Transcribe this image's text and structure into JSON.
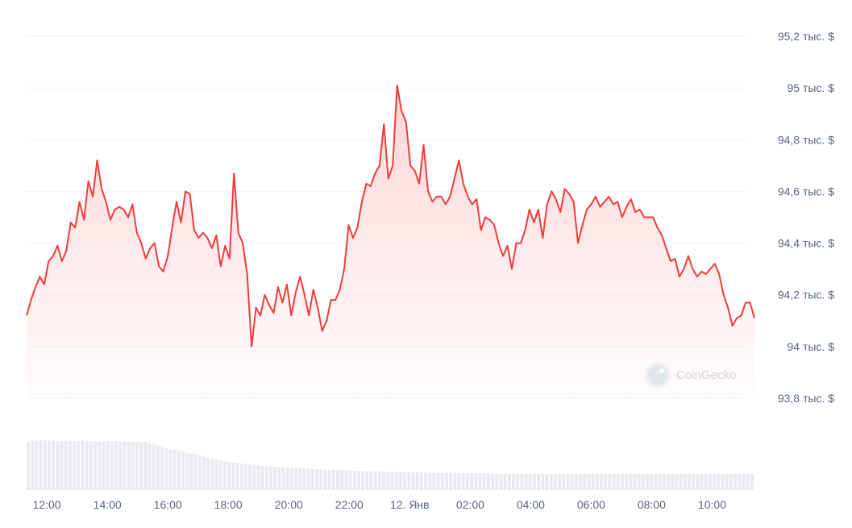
{
  "watermark": {
    "text": "CoinGecko",
    "icon": "gecko-logo-icon"
  },
  "chart_data": {
    "type": "area",
    "title": "",
    "xlabel": "",
    "ylabel": "",
    "ylim": [
      93800,
      95200
    ],
    "grid": true,
    "legend": "none",
    "colors": {
      "line": "#f23b3b",
      "fill_top": "#fddada",
      "volume": "#e8eaee",
      "grid": "#eff2f5",
      "text": "#58667e"
    },
    "y_ticks": [
      {
        "value": 95200,
        "label": "95,2 тыс. $"
      },
      {
        "value": 95000,
        "label": "95 тыс. $"
      },
      {
        "value": 94800,
        "label": "94,8 тыс. $"
      },
      {
        "value": 94600,
        "label": "94,6 тыс. $"
      },
      {
        "value": 94400,
        "label": "94,4 тыс. $"
      },
      {
        "value": 94200,
        "label": "94,2 тыс. $"
      },
      {
        "value": 94000,
        "label": "94 тыс. $"
      },
      {
        "value": 93800,
        "label": "93,8 тыс. $"
      }
    ],
    "x_range_hours": [
      11.33,
      11.4
    ],
    "x_ticks": [
      {
        "hour": 12,
        "label": "12:00"
      },
      {
        "hour": 14,
        "label": "14:00"
      },
      {
        "hour": 16,
        "label": "16:00"
      },
      {
        "hour": 18,
        "label": "18:00"
      },
      {
        "hour": 20,
        "label": "20:00"
      },
      {
        "hour": 22,
        "label": "22:00"
      },
      {
        "hour": 24,
        "label": "12. Янв"
      },
      {
        "hour": 26,
        "label": "02:00"
      },
      {
        "hour": 28,
        "label": "04:00"
      },
      {
        "hour": 30,
        "label": "06:00"
      },
      {
        "hour": 32,
        "label": "08:00"
      },
      {
        "hour": 34,
        "label": "10:00"
      }
    ],
    "series": [
      {
        "values": [
          94120,
          94180,
          94230,
          94270,
          94240,
          94330,
          94350,
          94390,
          94330,
          94370,
          94480,
          94460,
          94560,
          94490,
          94640,
          94580,
          94720,
          94610,
          94560,
          94490,
          94530,
          94540,
          94530,
          94500,
          94550,
          94440,
          94400,
          94340,
          94380,
          94400,
          94310,
          94290,
          94350,
          94460,
          94560,
          94480,
          94600,
          94590,
          94450,
          94420,
          94440,
          94420,
          94380,
          94430,
          94310,
          94390,
          94340,
          94670,
          94440,
          94400,
          94280,
          94000,
          94150,
          94120,
          94200,
          94160,
          94130,
          94230,
          94170,
          94240,
          94120,
          94210,
          94270,
          94200,
          94120,
          94220,
          94150,
          94060,
          94100,
          94180,
          94180,
          94220,
          94300,
          94470,
          94420,
          94460,
          94560,
          94630,
          94620,
          94670,
          94700,
          94860,
          94650,
          94700,
          95010,
          94910,
          94870,
          94700,
          94680,
          94630,
          94780,
          94600,
          94560,
          94580,
          94580,
          94550,
          94580,
          94650,
          94720,
          94630,
          94580,
          94550,
          94570,
          94450,
          94500,
          94490,
          94470,
          94400,
          94350,
          94390,
          94300,
          94400,
          94400,
          94450,
          94530,
          94480,
          94530,
          94420,
          94550,
          94600,
          94570,
          94520,
          94610,
          94590,
          94560,
          94400,
          94470,
          94530,
          94550,
          94580,
          94540,
          94560,
          94580,
          94550,
          94560,
          94500,
          94540,
          94570,
          94520,
          94530,
          94500,
          94500,
          94500,
          94460,
          94430,
          94380,
          94330,
          94340,
          94270,
          94300,
          94350,
          94300,
          94270,
          94290,
          94280,
          94300,
          94320,
          94280,
          94200,
          94150,
          94080,
          94110,
          94120,
          94170,
          94170,
          94110
        ]
      }
    ],
    "volume": {
      "values": [
        0.95,
        0.98,
        0.97,
        0.98,
        0.98,
        0.97,
        0.98,
        0.96,
        0.97,
        0.98,
        0.97,
        0.96,
        0.97,
        0.98,
        0.97,
        0.96,
        0.97,
        0.95,
        0.96,
        0.97,
        0.96,
        0.97,
        0.95,
        0.96,
        0.95,
        0.96,
        0.95,
        0.94,
        0.95,
        0.92,
        0.9,
        0.88,
        0.85,
        0.82,
        0.8,
        0.8,
        0.78,
        0.76,
        0.74,
        0.72,
        0.7,
        0.68,
        0.66,
        0.64,
        0.62,
        0.6,
        0.58,
        0.56,
        0.55,
        0.54,
        0.53,
        0.52,
        0.52,
        0.51,
        0.5,
        0.49,
        0.48,
        0.47,
        0.47,
        0.46,
        0.45,
        0.45,
        0.44,
        0.44,
        0.43,
        0.43,
        0.42,
        0.42,
        0.42,
        0.41,
        0.41,
        0.4,
        0.4,
        0.4,
        0.39,
        0.39,
        0.39,
        0.38,
        0.38,
        0.38,
        0.38,
        0.37,
        0.37,
        0.37,
        0.37,
        0.36,
        0.36,
        0.36,
        0.36,
        0.36,
        0.35,
        0.35,
        0.35,
        0.35,
        0.35,
        0.35,
        0.34,
        0.34,
        0.34,
        0.34,
        0.34,
        0.34,
        0.34,
        0.33,
        0.33,
        0.33,
        0.33,
        0.33,
        0.33,
        0.33,
        0.33,
        0.33,
        0.32,
        0.32,
        0.32,
        0.32,
        0.32,
        0.32,
        0.32,
        0.32,
        0.32,
        0.32,
        0.32,
        0.32,
        0.32,
        0.32,
        0.32,
        0.32,
        0.32,
        0.32,
        0.32,
        0.32,
        0.32,
        0.32,
        0.32,
        0.32,
        0.32,
        0.32,
        0.32,
        0.32,
        0.32,
        0.32,
        0.32,
        0.32,
        0.32,
        0.32,
        0.32,
        0.32,
        0.32,
        0.32,
        0.32,
        0.32,
        0.32,
        0.32,
        0.32,
        0.32,
        0.32,
        0.32,
        0.32,
        0.32,
        0.32,
        0.32,
        0.32,
        0.32,
        0.32,
        0.32,
        0.32,
        0.32,
        0.32,
        0.32,
        0.32,
        0.32,
        0.32,
        0.32
      ]
    }
  }
}
